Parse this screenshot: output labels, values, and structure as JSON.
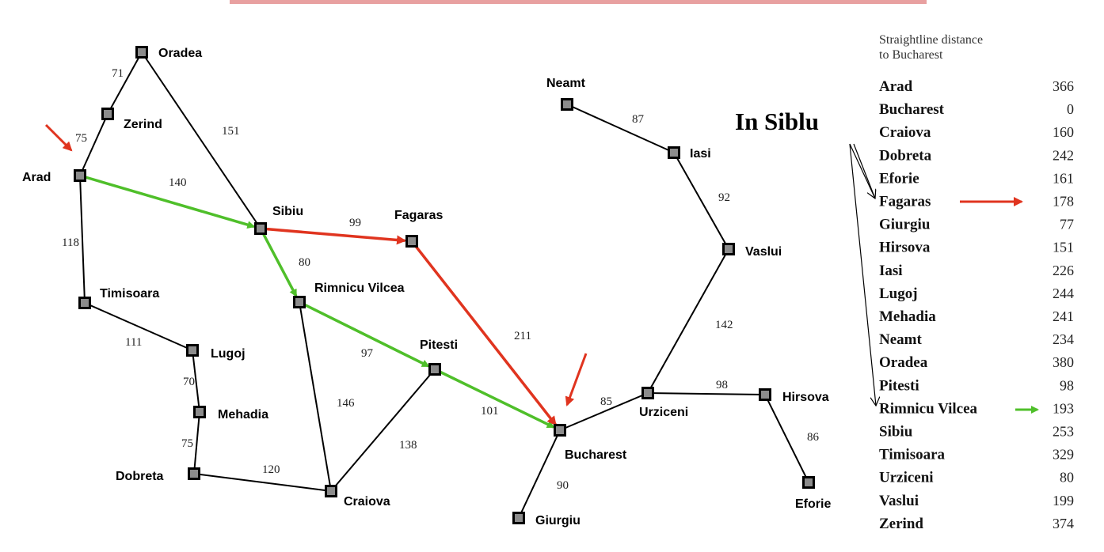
{
  "map": {
    "cities": [
      {
        "id": "oradea",
        "name": "Oradea"
      },
      {
        "id": "zerind",
        "name": "Zerind"
      },
      {
        "id": "arad",
        "name": "Arad"
      },
      {
        "id": "timisoara",
        "name": "Timisoara"
      },
      {
        "id": "lugoj",
        "name": "Lugoj"
      },
      {
        "id": "mehadia",
        "name": "Mehadia"
      },
      {
        "id": "dobreta",
        "name": "Dobreta"
      },
      {
        "id": "craiova",
        "name": "Craiova"
      },
      {
        "id": "sibiu",
        "name": "Sibiu"
      },
      {
        "id": "rimnicu",
        "name": "Rimnicu Vilcea"
      },
      {
        "id": "fagaras",
        "name": "Fagaras"
      },
      {
        "id": "pitesti",
        "name": "Pitesti"
      },
      {
        "id": "bucharest",
        "name": "Bucharest"
      },
      {
        "id": "giurgiu",
        "name": "Giurgiu"
      },
      {
        "id": "urziceni",
        "name": "Urziceni"
      },
      {
        "id": "hirsova",
        "name": "Hirsova"
      },
      {
        "id": "eforie",
        "name": "Eforie"
      },
      {
        "id": "vaslui",
        "name": "Vaslui"
      },
      {
        "id": "iasi",
        "name": "Iasi"
      },
      {
        "id": "neamt",
        "name": "Neamt"
      }
    ],
    "roads": [
      {
        "from": "oradea",
        "to": "zerind",
        "distance": "71"
      },
      {
        "from": "zerind",
        "to": "arad",
        "distance": "75"
      },
      {
        "from": "oradea",
        "to": "sibiu",
        "distance": "151"
      },
      {
        "from": "arad",
        "to": "sibiu",
        "distance": "140"
      },
      {
        "from": "arad",
        "to": "timisoara",
        "distance": "118"
      },
      {
        "from": "timisoara",
        "to": "lugoj",
        "distance": "111"
      },
      {
        "from": "lugoj",
        "to": "mehadia",
        "distance": "70"
      },
      {
        "from": "mehadia",
        "to": "dobreta",
        "distance": "75"
      },
      {
        "from": "dobreta",
        "to": "craiova",
        "distance": "120"
      },
      {
        "from": "sibiu",
        "to": "fagaras",
        "distance": "99"
      },
      {
        "from": "sibiu",
        "to": "rimnicu",
        "distance": "80"
      },
      {
        "from": "rimnicu",
        "to": "pitesti",
        "distance": "97"
      },
      {
        "from": "rimnicu",
        "to": "craiova",
        "distance": "146"
      },
      {
        "from": "craiova",
        "to": "pitesti",
        "distance": "138"
      },
      {
        "from": "fagaras",
        "to": "bucharest",
        "distance": "211"
      },
      {
        "from": "pitesti",
        "to": "bucharest",
        "distance": "101"
      },
      {
        "from": "bucharest",
        "to": "giurgiu",
        "distance": "90"
      },
      {
        "from": "bucharest",
        "to": "urziceni",
        "distance": "85"
      },
      {
        "from": "urziceni",
        "to": "hirsova",
        "distance": "98"
      },
      {
        "from": "hirsova",
        "to": "eforie",
        "distance": "86"
      },
      {
        "from": "urziceni",
        "to": "vaslui",
        "distance": "142"
      },
      {
        "from": "vaslui",
        "to": "iasi",
        "distance": "92"
      },
      {
        "from": "iasi",
        "to": "neamt",
        "distance": "87"
      }
    ],
    "green_path": [
      "arad",
      "sibiu",
      "rimnicu",
      "pitesti",
      "bucharest"
    ],
    "red_path": [
      "sibiu",
      "fagaras",
      "bucharest"
    ]
  },
  "annotation": {
    "note": "In Siblu"
  },
  "table": {
    "heading_line1": "Straightline distance",
    "heading_line2": "to Bucharest",
    "rows": [
      {
        "city": "Arad",
        "value": "366"
      },
      {
        "city": "Bucharest",
        "value": "0"
      },
      {
        "city": "Craiova",
        "value": "160"
      },
      {
        "city": "Dobreta",
        "value": "242"
      },
      {
        "city": "Eforie",
        "value": "161"
      },
      {
        "city": "Fagaras",
        "value": "178"
      },
      {
        "city": "Giurgiu",
        "value": "77"
      },
      {
        "city": "Hirsova",
        "value": "151"
      },
      {
        "city": "Iasi",
        "value": "226"
      },
      {
        "city": "Lugoj",
        "value": "244"
      },
      {
        "city": "Mehadia",
        "value": "241"
      },
      {
        "city": "Neamt",
        "value": "234"
      },
      {
        "city": "Oradea",
        "value": "380"
      },
      {
        "city": "Pitesti",
        "value": "98"
      },
      {
        "city": "Rimnicu Vilcea",
        "value": "193"
      },
      {
        "city": "Sibiu",
        "value": "253"
      },
      {
        "city": "Timisoara",
        "value": "329"
      },
      {
        "city": "Urziceni",
        "value": "80"
      },
      {
        "city": "Vaslui",
        "value": "199"
      },
      {
        "city": "Zerind",
        "value": "374"
      }
    ]
  },
  "colors": {
    "green_arrow": "#4fbf2a",
    "red_arrow": "#e0341f",
    "road": "#000000",
    "node_fill": "#8c8c8c",
    "top_bar": "#e8a0a0"
  }
}
